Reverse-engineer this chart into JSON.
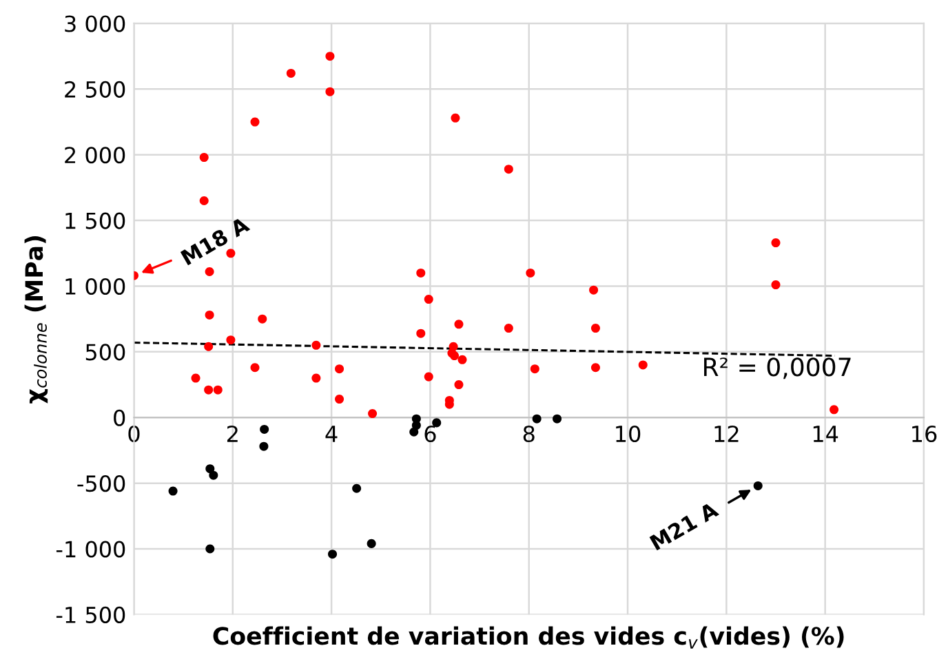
{
  "chart_data": {
    "type": "scatter",
    "xlabel": "Coefficient de variation des vides c$_{v}$(vides) (%)",
    "ylabel": "χ$_{colonne}$ (MPa)",
    "xlim": [
      0,
      16
    ],
    "xticks": [
      0,
      2,
      4,
      6,
      8,
      10,
      12,
      14,
      16
    ],
    "ylim": [
      -1500,
      3000
    ],
    "yticks": [
      {
        "value": -1500,
        "label": "-1 500"
      },
      {
        "value": -1000,
        "label": "-1 000"
      },
      {
        "value": -500,
        "label": "-500"
      },
      0,
      {
        "value": 500,
        "label": "500"
      },
      {
        "value": 1000,
        "label": "1 000"
      },
      {
        "value": 1500,
        "label": "1 500"
      },
      {
        "value": 2000,
        "label": "2 000"
      },
      {
        "value": 2500,
        "label": "2 500"
      },
      {
        "value": 3000,
        "label": "3 000"
      }
    ],
    "grid": true,
    "legend": false,
    "marker": "circle",
    "series": [
      {
        "color": "#ff0000",
        "x": [
          3.97,
          3.18,
          3.97,
          2.45,
          6.51,
          1.42,
          7.59,
          1.42,
          1.96,
          0,
          1.53,
          5.81,
          8.03,
          5.97,
          1.53,
          2.6,
          6.58,
          7.59,
          5.81,
          1.96,
          3.69,
          1.51,
          6.47,
          6.44,
          6.49,
          6.65,
          8.12,
          2.45,
          4.16,
          1.25,
          3.69,
          5.97,
          6.58,
          1.51,
          1.7,
          4.16,
          6.39,
          6.39,
          4.83,
          9.31,
          9.35,
          13.0,
          13.0,
          9.35,
          10.31,
          14.18
        ],
        "values": [
          2750,
          2620,
          2480,
          2250,
          2280,
          1980,
          1890,
          1650,
          1250,
          1080,
          1110,
          1100,
          1100,
          900,
          780,
          750,
          710,
          680,
          640,
          590,
          550,
          540,
          540,
          490,
          470,
          440,
          370,
          380,
          370,
          300,
          300,
          310,
          250,
          210,
          210,
          140,
          130,
          100,
          30,
          970,
          680,
          1330,
          1010,
          380,
          400,
          60
        ]
      },
      {
        "color": "#000000",
        "x": [
          2.64,
          2.63,
          0.79,
          1.54,
          1.61,
          1.54,
          4.02,
          4.51,
          4.81,
          5.72,
          5.72,
          5.67,
          6.13,
          8.16,
          8.57,
          12.64
        ],
        "values": [
          -90,
          -220,
          -560,
          -390,
          -440,
          -1000,
          -1040,
          -540,
          -960,
          -10,
          -60,
          -110,
          -40,
          -10,
          -10,
          -520
        ]
      },
      {
        "type": "line",
        "color": "#000000",
        "line_style": "dashed",
        "marker": "none",
        "x": [
          0,
          14.2
        ],
        "values": [
          570,
          470
        ]
      }
    ],
    "annotations": [
      {
        "text": "M18 A",
        "x": 0,
        "y": 1080
      },
      {
        "text": "M21 A",
        "x": 12.64,
        "y": -520
      },
      {
        "text": "R² = 0,0007",
        "x": 11.5,
        "y": 460
      }
    ]
  }
}
